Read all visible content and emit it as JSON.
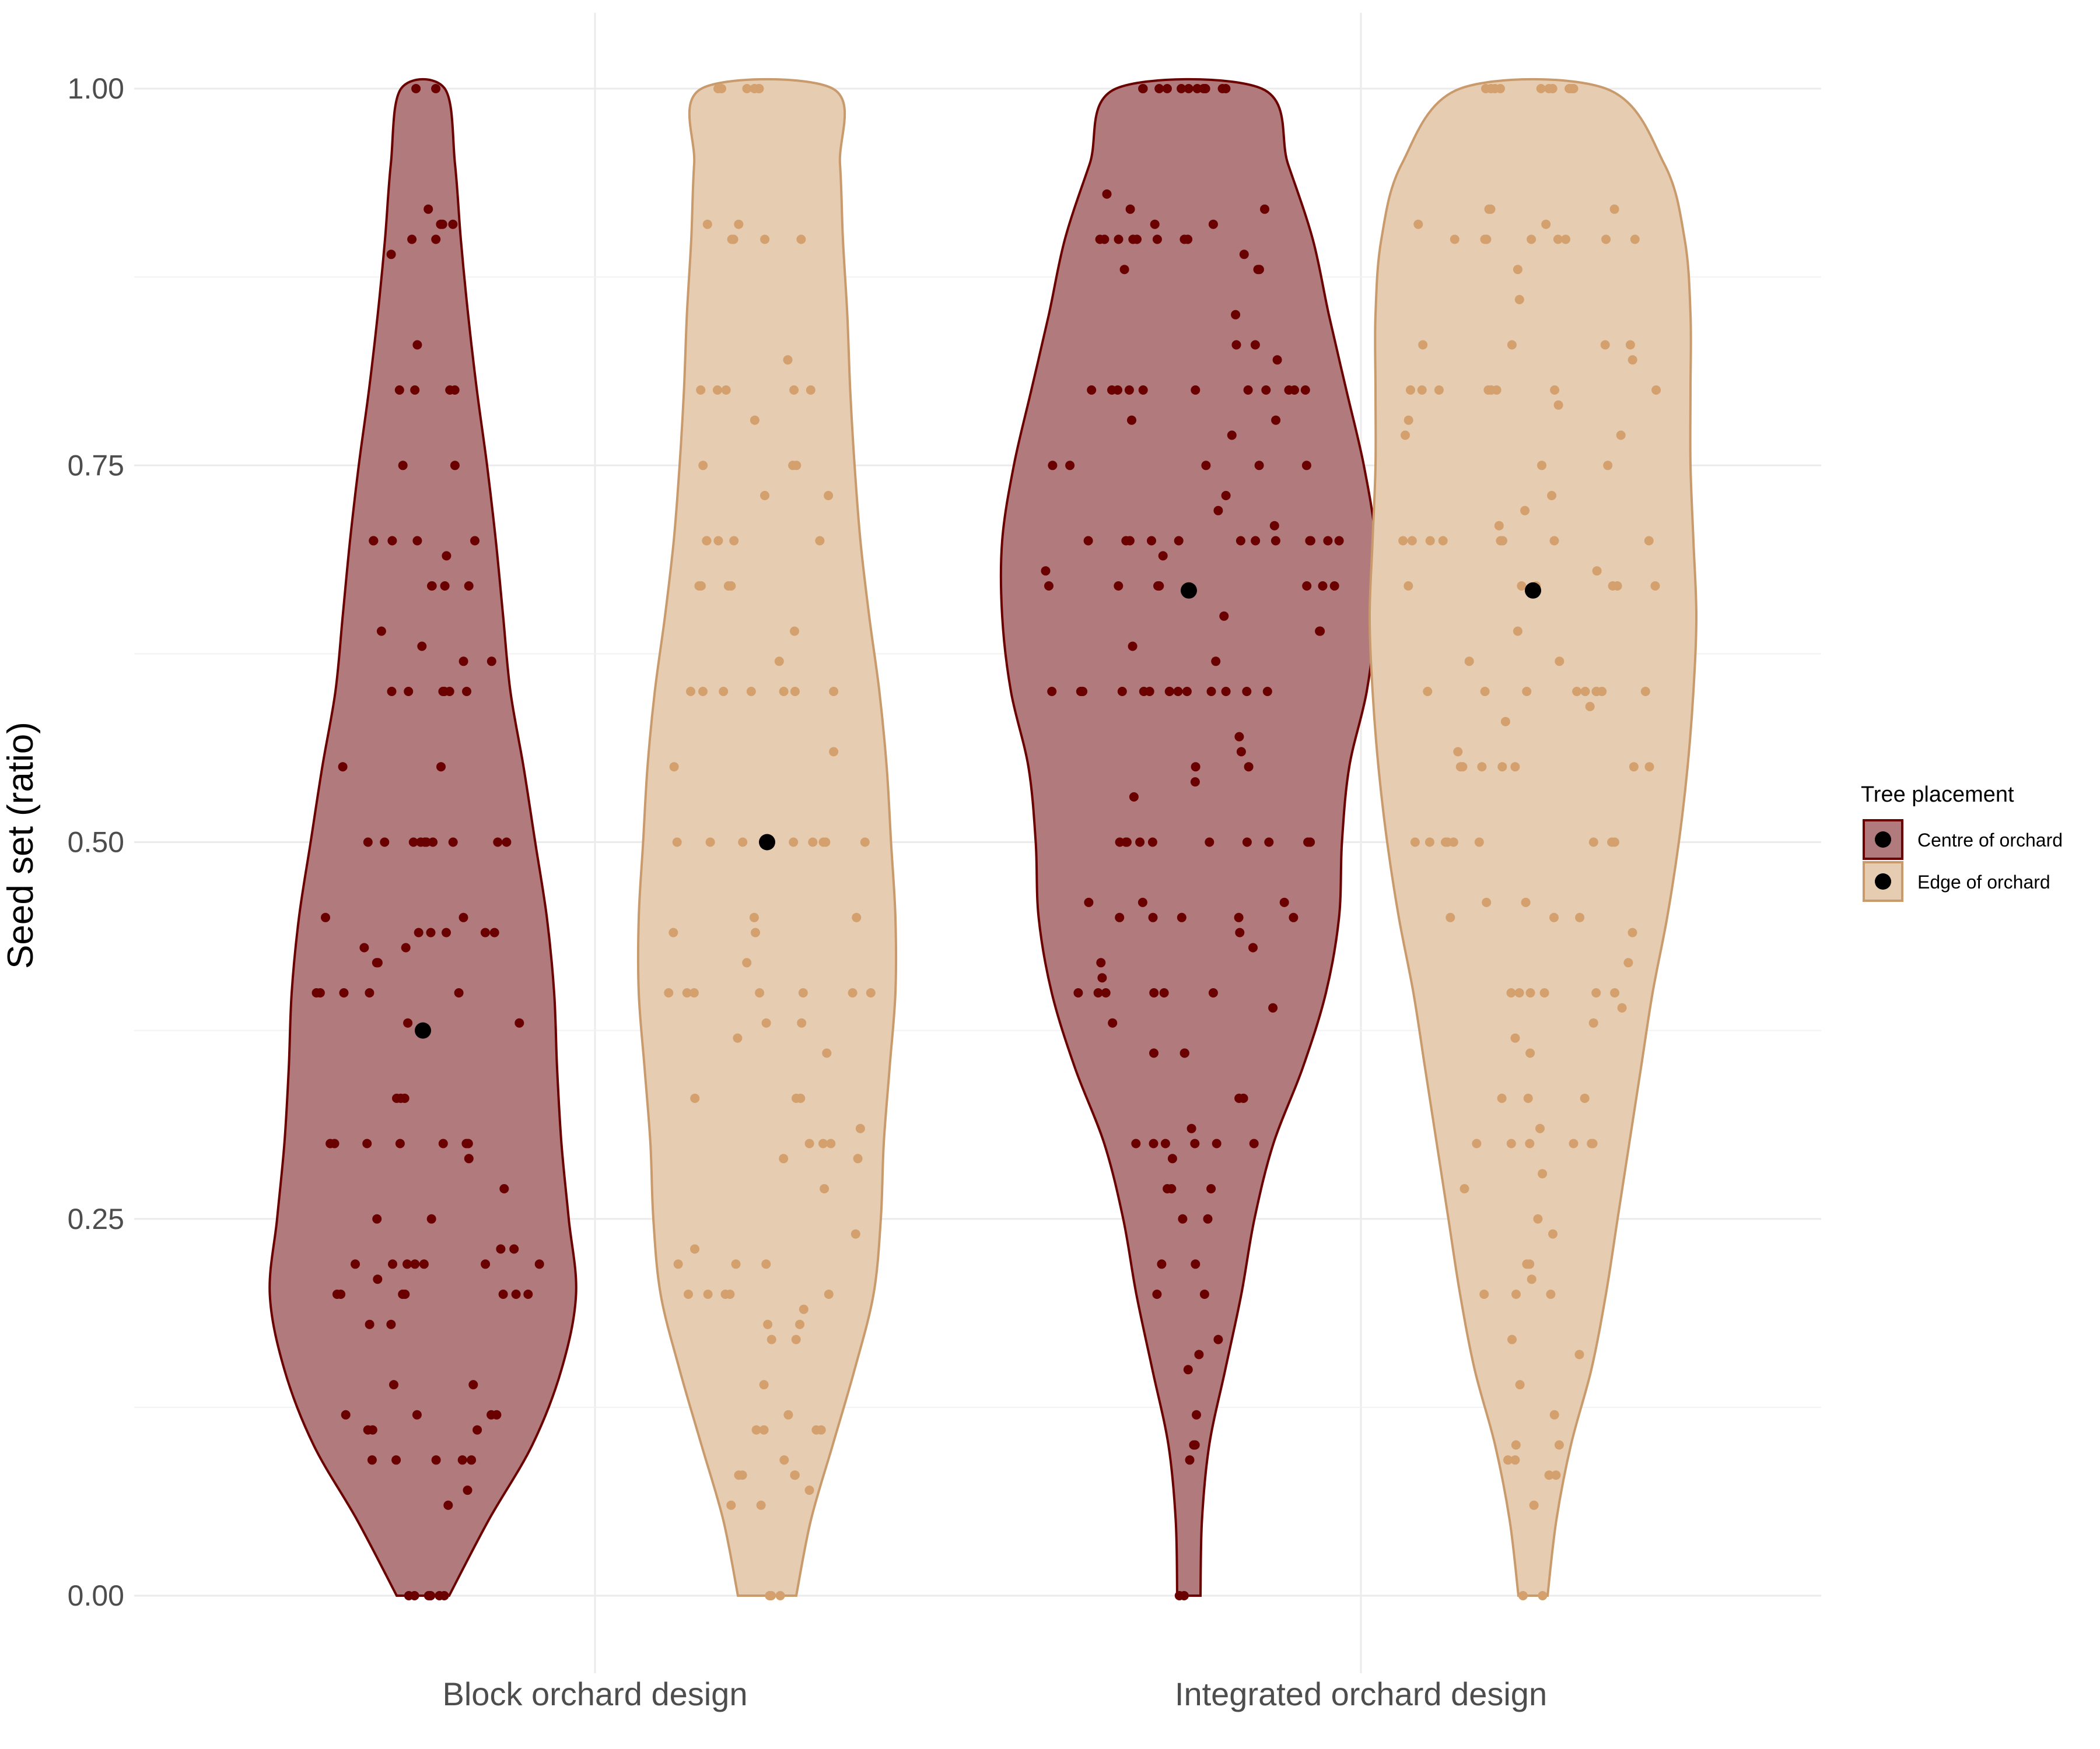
{
  "chart_data": {
    "type": "violin",
    "ylabel": "Seed set (ratio)",
    "xlabel": "",
    "ylim": [
      -0.05,
      1.05
    ],
    "yticks": [
      0.0,
      0.25,
      0.5,
      0.75,
      1.0
    ],
    "ytick_labels": [
      "0.00",
      "0.25",
      "0.50",
      "0.75",
      "1.00"
    ],
    "categories": [
      "Block orchard design",
      "Integrated orchard design"
    ],
    "grid": true,
    "legend": {
      "title": "Tree placement",
      "position": "right",
      "entries": [
        "Centre of orchard",
        "Edge of orchard"
      ]
    },
    "series": [
      {
        "name": "Centre of orchard",
        "fill": "#b17a7c",
        "stroke": "#6b0000",
        "point_color": "#6b0000",
        "violins": [
          {
            "category": "Block orchard design",
            "median": 0.375,
            "density": [
              [
                0.0,
                0.018
              ],
              [
                0.05,
                0.045
              ],
              [
                0.1,
                0.075
              ],
              [
                0.15,
                0.095
              ],
              [
                0.2,
                0.105
              ],
              [
                0.25,
                0.1
              ],
              [
                0.3,
                0.095
              ],
              [
                0.35,
                0.092
              ],
              [
                0.4,
                0.09
              ],
              [
                0.45,
                0.085
              ],
              [
                0.5,
                0.077
              ],
              [
                0.55,
                0.069
              ],
              [
                0.6,
                0.06
              ],
              [
                0.65,
                0.055
              ],
              [
                0.7,
                0.05
              ],
              [
                0.75,
                0.044
              ],
              [
                0.8,
                0.037
              ],
              [
                0.85,
                0.031
              ],
              [
                0.9,
                0.026
              ],
              [
                0.95,
                0.022
              ],
              [
                1.0,
                0.015
              ]
            ],
            "points": [
              0.0,
              0.0,
              0.0,
              0.0,
              0.0,
              0.0,
              0.0,
              0.0,
              0.06,
              0.07,
              0.09,
              0.09,
              0.09,
              0.09,
              0.09,
              0.11,
              0.11,
              0.11,
              0.12,
              0.12,
              0.12,
              0.12,
              0.14,
              0.14,
              0.18,
              0.18,
              0.2,
              0.2,
              0.2,
              0.2,
              0.2,
              0.2,
              0.2,
              0.21,
              0.22,
              0.22,
              0.22,
              0.22,
              0.22,
              0.22,
              0.22,
              0.23,
              0.23,
              0.25,
              0.25,
              0.27,
              0.29,
              0.3,
              0.3,
              0.3,
              0.3,
              0.3,
              0.3,
              0.3,
              0.33,
              0.33,
              0.33,
              0.38,
              0.38,
              0.4,
              0.4,
              0.4,
              0.4,
              0.4,
              0.42,
              0.42,
              0.43,
              0.43,
              0.44,
              0.44,
              0.44,
              0.44,
              0.44,
              0.45,
              0.45,
              0.5,
              0.5,
              0.5,
              0.5,
              0.5,
              0.5,
              0.5,
              0.5,
              0.5,
              0.5,
              0.55,
              0.55,
              0.6,
              0.6,
              0.6,
              0.6,
              0.6,
              0.6,
              0.62,
              0.62,
              0.63,
              0.64,
              0.67,
              0.67,
              0.67,
              0.67,
              0.69,
              0.7,
              0.7,
              0.7,
              0.7,
              0.7,
              0.75,
              0.75,
              0.8,
              0.8,
              0.8,
              0.8,
              0.83,
              0.89,
              0.9,
              0.9,
              0.91,
              0.91,
              0.91,
              0.92,
              1.0,
              1.0
            ]
          },
          {
            "category": "Integrated orchard design",
            "median": 0.667,
            "density": [
              [
                0.0,
                0.008
              ],
              [
                0.05,
                0.009
              ],
              [
                0.1,
                0.014
              ],
              [
                0.15,
                0.025
              ],
              [
                0.2,
                0.036
              ],
              [
                0.25,
                0.045
              ],
              [
                0.3,
                0.058
              ],
              [
                0.35,
                0.078
              ],
              [
                0.4,
                0.094
              ],
              [
                0.45,
                0.103
              ],
              [
                0.5,
                0.105
              ],
              [
                0.55,
                0.11
              ],
              [
                0.6,
                0.122
              ],
              [
                0.65,
                0.128
              ],
              [
                0.7,
                0.128
              ],
              [
                0.75,
                0.12
              ],
              [
                0.8,
                0.108
              ],
              [
                0.85,
                0.096
              ],
              [
                0.9,
                0.085
              ],
              [
                0.95,
                0.068
              ],
              [
                1.0,
                0.05
              ]
            ],
            "points": [
              0.0,
              0.0,
              0.09,
              0.1,
              0.1,
              0.12,
              0.15,
              0.16,
              0.17,
              0.2,
              0.2,
              0.22,
              0.22,
              0.25,
              0.25,
              0.27,
              0.27,
              0.27,
              0.29,
              0.3,
              0.3,
              0.3,
              0.3,
              0.3,
              0.3,
              0.31,
              0.33,
              0.33,
              0.36,
              0.36,
              0.36,
              0.38,
              0.39,
              0.4,
              0.4,
              0.4,
              0.4,
              0.4,
              0.4,
              0.41,
              0.42,
              0.43,
              0.44,
              0.45,
              0.45,
              0.45,
              0.45,
              0.45,
              0.46,
              0.46,
              0.46,
              0.5,
              0.5,
              0.5,
              0.5,
              0.5,
              0.5,
              0.5,
              0.5,
              0.5,
              0.5,
              0.53,
              0.54,
              0.55,
              0.55,
              0.56,
              0.57,
              0.6,
              0.6,
              0.6,
              0.6,
              0.6,
              0.6,
              0.6,
              0.6,
              0.6,
              0.6,
              0.6,
              0.6,
              0.6,
              0.6,
              0.62,
              0.63,
              0.64,
              0.64,
              0.65,
              0.67,
              0.67,
              0.67,
              0.67,
              0.67,
              0.67,
              0.67,
              0.67,
              0.68,
              0.69,
              0.7,
              0.7,
              0.7,
              0.7,
              0.7,
              0.7,
              0.7,
              0.7,
              0.7,
              0.7,
              0.7,
              0.7,
              0.71,
              0.72,
              0.73,
              0.75,
              0.75,
              0.75,
              0.75,
              0.75,
              0.77,
              0.78,
              0.78,
              0.8,
              0.8,
              0.8,
              0.8,
              0.8,
              0.8,
              0.8,
              0.8,
              0.8,
              0.8,
              0.8,
              0.82,
              0.83,
              0.83,
              0.85,
              0.88,
              0.88,
              0.88,
              0.89,
              0.9,
              0.9,
              0.9,
              0.9,
              0.9,
              0.9,
              0.9,
              0.9,
              0.91,
              0.91,
              0.92,
              0.92,
              0.93,
              1.0,
              1.0,
              1.0,
              1.0,
              1.0,
              1.0,
              1.0,
              1.0,
              1.0,
              1.0,
              1.0,
              1.0
            ]
          }
        ]
      },
      {
        "name": "Edge of orchard",
        "fill": "#e6cdb2",
        "stroke": "#c99a6b",
        "point_color": "#d4a06e",
        "violins": [
          {
            "category": "Block orchard design",
            "median": 0.5,
            "density": [
              [
                0.0,
                0.02
              ],
              [
                0.05,
                0.03
              ],
              [
                0.1,
                0.045
              ],
              [
                0.15,
                0.06
              ],
              [
                0.2,
                0.073
              ],
              [
                0.25,
                0.078
              ],
              [
                0.3,
                0.08
              ],
              [
                0.35,
                0.084
              ],
              [
                0.4,
                0.088
              ],
              [
                0.45,
                0.088
              ],
              [
                0.5,
                0.085
              ],
              [
                0.55,
                0.082
              ],
              [
                0.6,
                0.077
              ],
              [
                0.65,
                0.07
              ],
              [
                0.7,
                0.064
              ],
              [
                0.75,
                0.06
              ],
              [
                0.8,
                0.057
              ],
              [
                0.85,
                0.055
              ],
              [
                0.9,
                0.052
              ],
              [
                0.95,
                0.05
              ],
              [
                1.0,
                0.045
              ]
            ],
            "points": [
              0.0,
              0.0,
              0.0,
              0.06,
              0.06,
              0.07,
              0.08,
              0.08,
              0.08,
              0.08,
              0.09,
              0.11,
              0.11,
              0.11,
              0.11,
              0.12,
              0.14,
              0.17,
              0.17,
              0.18,
              0.18,
              0.19,
              0.2,
              0.2,
              0.2,
              0.2,
              0.2,
              0.22,
              0.22,
              0.22,
              0.23,
              0.24,
              0.27,
              0.29,
              0.29,
              0.3,
              0.3,
              0.3,
              0.31,
              0.33,
              0.33,
              0.33,
              0.36,
              0.37,
              0.38,
              0.38,
              0.4,
              0.4,
              0.4,
              0.4,
              0.4,
              0.4,
              0.4,
              0.42,
              0.44,
              0.44,
              0.45,
              0.45,
              0.5,
              0.5,
              0.5,
              0.5,
              0.5,
              0.5,
              0.5,
              0.5,
              0.55,
              0.56,
              0.6,
              0.6,
              0.6,
              0.6,
              0.6,
              0.6,
              0.6,
              0.62,
              0.64,
              0.67,
              0.67,
              0.67,
              0.67,
              0.7,
              0.7,
              0.7,
              0.7,
              0.7,
              0.73,
              0.73,
              0.75,
              0.75,
              0.75,
              0.78,
              0.8,
              0.8,
              0.8,
              0.8,
              0.8,
              0.82,
              0.9,
              0.9,
              0.9,
              0.9,
              0.91,
              0.91,
              1.0,
              1.0,
              1.0,
              1.0,
              1.0,
              1.0
            ]
          },
          {
            "category": "Integrated orchard design",
            "median": 0.667,
            "density": [
              [
                0.0,
                0.01
              ],
              [
                0.05,
                0.016
              ],
              [
                0.1,
                0.026
              ],
              [
                0.15,
                0.04
              ],
              [
                0.2,
                0.05
              ],
              [
                0.25,
                0.058
              ],
              [
                0.3,
                0.066
              ],
              [
                0.35,
                0.074
              ],
              [
                0.4,
                0.082
              ],
              [
                0.45,
                0.092
              ],
              [
                0.5,
                0.1
              ],
              [
                0.55,
                0.106
              ],
              [
                0.6,
                0.11
              ],
              [
                0.65,
                0.112
              ],
              [
                0.7,
                0.11
              ],
              [
                0.75,
                0.108
              ],
              [
                0.8,
                0.108
              ],
              [
                0.85,
                0.108
              ],
              [
                0.9,
                0.104
              ],
              [
                0.95,
                0.09
              ],
              [
                1.0,
                0.05
              ]
            ],
            "points": [
              0.0,
              0.0,
              0.06,
              0.08,
              0.08,
              0.09,
              0.09,
              0.1,
              0.1,
              0.12,
              0.14,
              0.16,
              0.17,
              0.2,
              0.2,
              0.2,
              0.21,
              0.22,
              0.22,
              0.24,
              0.25,
              0.27,
              0.28,
              0.3,
              0.3,
              0.3,
              0.3,
              0.3,
              0.3,
              0.31,
              0.33,
              0.33,
              0.33,
              0.36,
              0.37,
              0.38,
              0.39,
              0.4,
              0.4,
              0.4,
              0.4,
              0.4,
              0.4,
              0.42,
              0.44,
              0.45,
              0.45,
              0.45,
              0.46,
              0.46,
              0.5,
              0.5,
              0.5,
              0.5,
              0.5,
              0.5,
              0.5,
              0.5,
              0.5,
              0.55,
              0.55,
              0.55,
              0.55,
              0.55,
              0.55,
              0.55,
              0.56,
              0.58,
              0.59,
              0.6,
              0.6,
              0.6,
              0.6,
              0.6,
              0.6,
              0.6,
              0.6,
              0.6,
              0.62,
              0.62,
              0.64,
              0.67,
              0.67,
              0.67,
              0.67,
              0.67,
              0.67,
              0.68,
              0.7,
              0.7,
              0.7,
              0.7,
              0.7,
              0.7,
              0.7,
              0.7,
              0.71,
              0.72,
              0.73,
              0.75,
              0.75,
              0.77,
              0.77,
              0.78,
              0.79,
              0.8,
              0.8,
              0.8,
              0.8,
              0.8,
              0.8,
              0.8,
              0.8,
              0.82,
              0.83,
              0.83,
              0.83,
              0.83,
              0.86,
              0.88,
              0.9,
              0.9,
              0.9,
              0.9,
              0.9,
              0.9,
              0.9,
              0.9,
              0.91,
              0.91,
              0.92,
              0.92,
              0.92,
              1.0,
              1.0,
              1.0,
              1.0,
              1.0,
              1.0,
              1.0,
              1.0,
              1.0,
              1.0,
              1.0
            ]
          }
        ]
      }
    ]
  }
}
